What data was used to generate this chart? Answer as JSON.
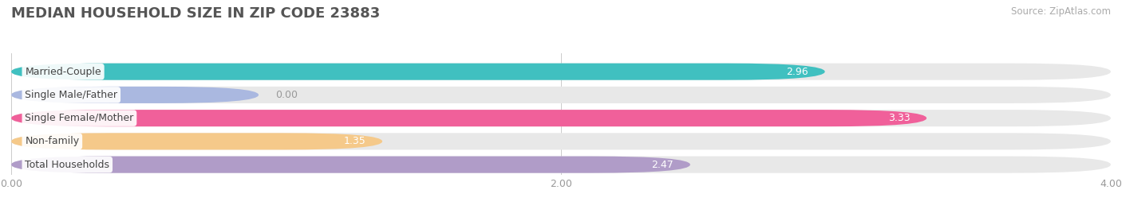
{
  "title": "MEDIAN HOUSEHOLD SIZE IN ZIP CODE 23883",
  "source": "Source: ZipAtlas.com",
  "categories": [
    "Married-Couple",
    "Single Male/Father",
    "Single Female/Mother",
    "Non-family",
    "Total Households"
  ],
  "values": [
    2.96,
    0.0,
    3.33,
    1.35,
    2.47
  ],
  "colors": [
    "#40c0c0",
    "#aab8e0",
    "#f0609a",
    "#f5c98a",
    "#b09cc8"
  ],
  "bar_bg_color": "#e8e8e8",
  "label_bg_color": "#ffffff",
  "xlim": [
    0,
    4.0
  ],
  "xticks": [
    0.0,
    2.0,
    4.0
  ],
  "xtick_labels": [
    "0.00",
    "2.00",
    "4.00"
  ],
  "figsize": [
    14.06,
    2.68
  ],
  "dpi": 100,
  "label_fontsize": 9,
  "value_fontsize": 9,
  "title_fontsize": 13,
  "source_fontsize": 8.5,
  "bar_height": 0.72,
  "bar_gap": 0.28,
  "title_color": "#555555",
  "tick_color": "#999999",
  "value_color_inside": "#ffffff",
  "value_color_outside": "#999999"
}
